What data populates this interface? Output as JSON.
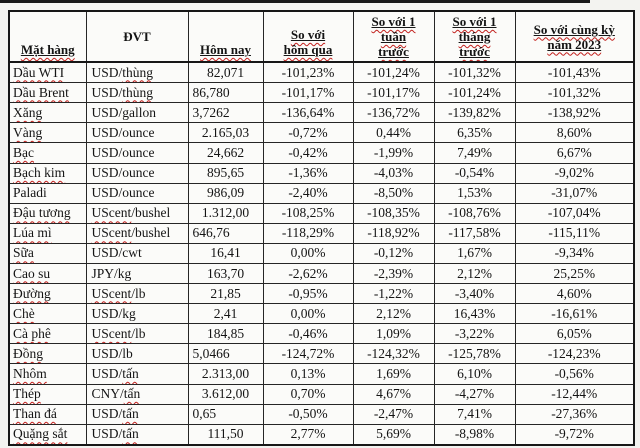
{
  "colors": {
    "spellcheck_red": "#c2201d",
    "border_black": "#171717",
    "background": "#f3f3f0"
  },
  "table": {
    "columns": [
      {
        "key": "item",
        "label_lines": [
          "Mặt hàng"
        ],
        "underline": true,
        "wavy": true
      },
      {
        "key": "unit",
        "label_lines": [
          "ĐVT"
        ],
        "underline": false,
        "wavy": false
      },
      {
        "key": "today",
        "label_lines": [
          "Hôm nay"
        ],
        "underline": true,
        "wavy": true
      },
      {
        "key": "vs_yesterday",
        "label_lines": [
          "So với",
          "hôm qua"
        ],
        "underline": true,
        "wavy": true
      },
      {
        "key": "vs_week",
        "label_lines": [
          "So với 1",
          "tuần",
          "trước"
        ],
        "underline": true,
        "wavy": true
      },
      {
        "key": "vs_month",
        "label_lines": [
          "So với 1",
          "tháng",
          "trước"
        ],
        "underline": true,
        "wavy": true
      },
      {
        "key": "vs_year",
        "label_lines": [
          "So với cùng kỳ",
          "năm 2023"
        ],
        "underline": true,
        "wavy": true
      }
    ],
    "rows": [
      {
        "item": "Dầu WTI",
        "item_misspelled": true,
        "unit_segments": [
          {
            "text": "USD/",
            "misspelled": false
          },
          {
            "text": "thùng",
            "misspelled": true
          }
        ],
        "today": "82,071",
        "today_align": "center",
        "vs_yesterday": "-101,23%",
        "vs_week": "-101,24%",
        "vs_month": "-101,32%",
        "vs_year": "-101,43%"
      },
      {
        "item": "Dầu Brent",
        "item_misspelled": true,
        "unit_segments": [
          {
            "text": "USD/",
            "misspelled": false
          },
          {
            "text": "thùng",
            "misspelled": true
          }
        ],
        "today": "86,780",
        "today_align": "left",
        "vs_yesterday": "-101,17%",
        "vs_week": "-101,17%",
        "vs_month": "-101,24%",
        "vs_year": "-101,32%"
      },
      {
        "item": "Xăng",
        "item_misspelled": true,
        "unit_segments": [
          {
            "text": "USD/gallon",
            "misspelled": false
          }
        ],
        "today": "3,7262",
        "today_align": "left",
        "vs_yesterday": "-136,64%",
        "vs_week": "-136,72%",
        "vs_month": "-139,82%",
        "vs_year": "-138,92%"
      },
      {
        "item": "Vàng",
        "item_misspelled": true,
        "unit_segments": [
          {
            "text": "USD/ounce",
            "misspelled": false
          }
        ],
        "today": "2.165,03",
        "today_align": "center",
        "vs_yesterday": "-0,72%",
        "vs_week": "0,44%",
        "vs_month": "6,35%",
        "vs_year": "8,60%"
      },
      {
        "item": "Bạc",
        "item_misspelled": true,
        "unit_segments": [
          {
            "text": "USD/ounce",
            "misspelled": false
          }
        ],
        "today": "24,662",
        "today_align": "center",
        "vs_yesterday": "-0,42%",
        "vs_week": "-1,99%",
        "vs_month": "7,49%",
        "vs_year": "6,67%"
      },
      {
        "item": "Bạch kim",
        "item_misspelled": true,
        "unit_segments": [
          {
            "text": "USD/ounce",
            "misspelled": false
          }
        ],
        "today": "895,65",
        "today_align": "center",
        "vs_yesterday": "-1,36%",
        "vs_week": "-4,03%",
        "vs_month": "-0,54%",
        "vs_year": "-9,02%"
      },
      {
        "item": "Paladi",
        "item_misspelled": false,
        "unit_segments": [
          {
            "text": "USD/ounce",
            "misspelled": false
          }
        ],
        "today": "986,09",
        "today_align": "center",
        "vs_yesterday": "-2,40%",
        "vs_week": "-8,50%",
        "vs_month": "1,53%",
        "vs_year": "-31,07%"
      },
      {
        "item": "Đậu tương",
        "item_misspelled": true,
        "unit_segments": [
          {
            "text": "UScent",
            "misspelled": true
          },
          {
            "text": "/bushel",
            "misspelled": false
          }
        ],
        "today": "1.312,00",
        "today_align": "center",
        "vs_yesterday": "-108,25%",
        "vs_week": "-108,35%",
        "vs_month": "-108,76%",
        "vs_year": "-107,04%"
      },
      {
        "item": "Lúa mì",
        "item_misspelled": true,
        "unit_segments": [
          {
            "text": "UScent",
            "misspelled": true
          },
          {
            "text": "/bushel",
            "misspelled": false
          }
        ],
        "today": "646,76",
        "today_align": "left",
        "vs_yesterday": "-118,29%",
        "vs_week": "-118,92%",
        "vs_month": "-117,58%",
        "vs_year": "-115,11%"
      },
      {
        "item": "Sữa",
        "item_misspelled": true,
        "unit_segments": [
          {
            "text": "USD/cwt",
            "misspelled": false
          }
        ],
        "today": "16,41",
        "today_align": "center",
        "vs_yesterday": "0,00%",
        "vs_week": "-0,12%",
        "vs_month": "1,67%",
        "vs_year": "-9,34%"
      },
      {
        "item": "Cao su",
        "item_misspelled": true,
        "unit_segments": [
          {
            "text": "JPY/kg",
            "misspelled": false
          }
        ],
        "today": "163,70",
        "today_align": "center",
        "vs_yesterday": "-2,62%",
        "vs_week": "-2,39%",
        "vs_month": "2,12%",
        "vs_year": "25,25%"
      },
      {
        "item": "Đường",
        "item_misspelled": true,
        "unit_segments": [
          {
            "text": "UScent",
            "misspelled": true
          },
          {
            "text": "/lb",
            "misspelled": false
          }
        ],
        "today": "21,85",
        "today_align": "center",
        "vs_yesterday": "-0,95%",
        "vs_week": "-1,22%",
        "vs_month": "-3,40%",
        "vs_year": "4,60%"
      },
      {
        "item": "Chè",
        "item_misspelled": true,
        "unit_segments": [
          {
            "text": "USD/kg",
            "misspelled": false
          }
        ],
        "today": "2,41",
        "today_align": "center",
        "vs_yesterday": "0,00%",
        "vs_week": "2,12%",
        "vs_month": "16,43%",
        "vs_year": "-16,61%"
      },
      {
        "item": "Cà phê",
        "item_misspelled": true,
        "unit_segments": [
          {
            "text": "UScent",
            "misspelled": true
          },
          {
            "text": "/lb",
            "misspelled": false
          }
        ],
        "today": "184,85",
        "today_align": "center",
        "vs_yesterday": "-0,46%",
        "vs_week": "1,09%",
        "vs_month": "-3,22%",
        "vs_year": "6,05%"
      },
      {
        "item": "Đồng",
        "item_misspelled": true,
        "unit_segments": [
          {
            "text": "USD/lb",
            "misspelled": false
          }
        ],
        "today": "5,0466",
        "today_align": "left",
        "vs_yesterday": "-124,72%",
        "vs_week": "-124,32%",
        "vs_month": "-125,78%",
        "vs_year": "-124,23%"
      },
      {
        "item": "Nhôm",
        "item_misspelled": true,
        "unit_segments": [
          {
            "text": "USD/",
            "misspelled": false
          },
          {
            "text": "tấn",
            "misspelled": true
          }
        ],
        "today": "2.313,00",
        "today_align": "center",
        "vs_yesterday": "0,13%",
        "vs_week": "1,69%",
        "vs_month": "6,10%",
        "vs_year": "-0,56%"
      },
      {
        "item": "Thép",
        "item_misspelled": true,
        "unit_segments": [
          {
            "text": "CNY/",
            "misspelled": false
          },
          {
            "text": "tấn",
            "misspelled": true
          }
        ],
        "today": "3.612,00",
        "today_align": "center",
        "vs_yesterday": "0,70%",
        "vs_week": "4,67%",
        "vs_month": "-4,27%",
        "vs_year": "-12,44%"
      },
      {
        "item": "Than đá",
        "item_misspelled": true,
        "unit_segments": [
          {
            "text": "USD/",
            "misspelled": false
          },
          {
            "text": "tấn",
            "misspelled": true
          }
        ],
        "today": "0,65",
        "today_align": "left",
        "vs_yesterday": "-0,50%",
        "vs_week": "-2,47%",
        "vs_month": "7,41%",
        "vs_year": "-27,36%"
      },
      {
        "item": "Quặng sắt",
        "item_misspelled": true,
        "unit_segments": [
          {
            "text": "USD/",
            "misspelled": false
          },
          {
            "text": "tấn",
            "misspelled": true
          }
        ],
        "today": "111,50",
        "today_align": "center",
        "vs_yesterday": "2,77%",
        "vs_week": "5,69%",
        "vs_month": "-8,98%",
        "vs_year": "-9,72%"
      }
    ]
  }
}
